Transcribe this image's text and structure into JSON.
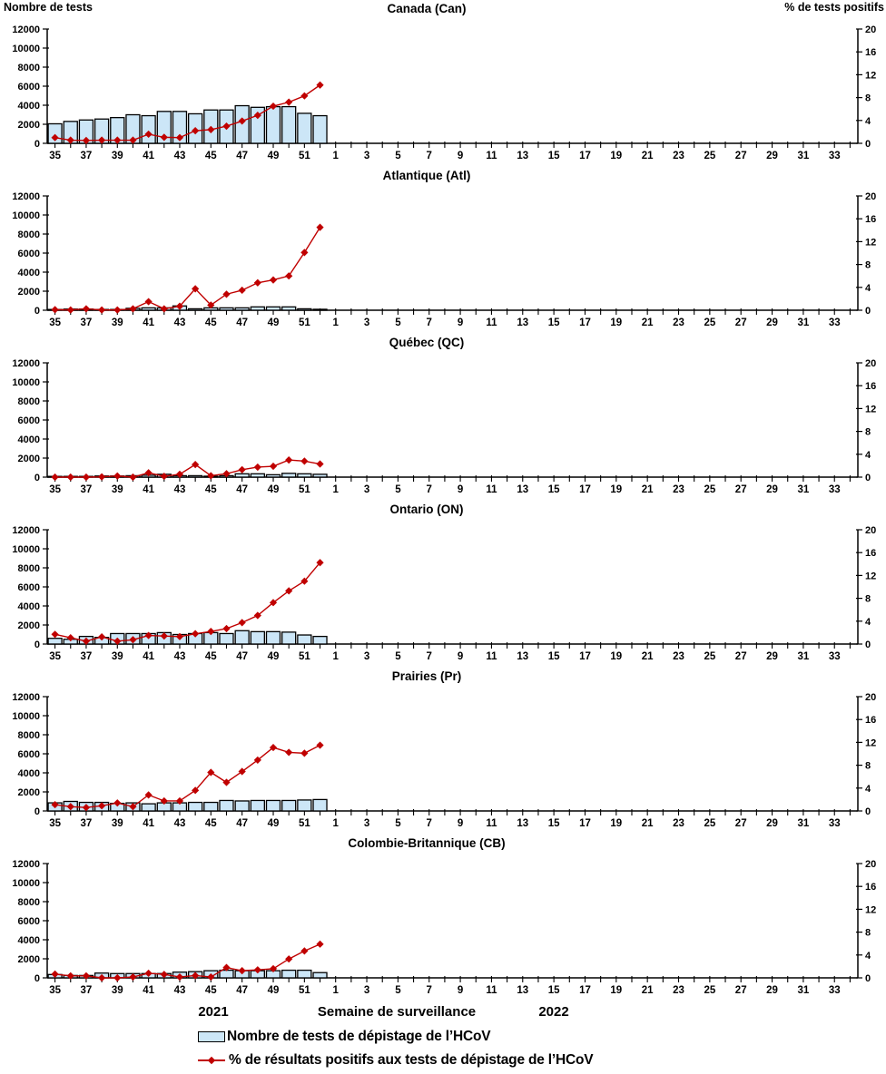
{
  "page": {
    "left_axis_title": "Nombre de tests",
    "right_axis_title": "% de tests positifs",
    "x_axis": {
      "year_left": "2021",
      "label": "Semaine de surveillance",
      "year_right": "2022"
    },
    "legend": [
      {
        "swatch": "bar",
        "label": "Nombre de tests de dépistage de l’HCoV"
      },
      {
        "swatch": "line",
        "label": "% de résultats positifs aux tests de dépistage de l’HCoV"
      }
    ],
    "colors": {
      "bar_fill": "#cce6f7",
      "bar_stroke": "#000000",
      "line": "#c00000"
    }
  },
  "chart_data": [
    {
      "type": "bar+line",
      "title": "Canada (Can)",
      "xlabel": "Semaine de surveillance",
      "ylabel_left": "Nombre de tests",
      "ylabel_right": "% de tests positifs",
      "ylim_left": [
        0,
        12000
      ],
      "ylim_right": [
        0,
        20
      ],
      "categories": [
        35,
        36,
        37,
        38,
        39,
        40,
        41,
        42,
        43,
        44,
        45,
        46,
        47,
        48,
        49,
        50,
        51,
        52,
        1,
        2,
        3,
        4,
        5,
        6,
        7,
        8,
        9,
        10,
        11,
        12,
        13,
        14,
        15,
        16,
        17,
        18,
        19,
        20,
        21,
        22,
        23,
        24,
        25,
        26,
        27,
        28,
        29,
        30,
        31,
        32,
        33,
        34
      ],
      "series": [
        {
          "name": "Nombre de tests de dépistage de l’HCoV",
          "axis": "left",
          "values": [
            2050,
            2300,
            2450,
            2550,
            2700,
            3000,
            2900,
            3350,
            3350,
            3100,
            3500,
            3500,
            3950,
            3780,
            3850,
            3850,
            3150,
            2900
          ]
        },
        {
          "name": "% de résultats positifs aux tests de dépistage de l’HCoV",
          "axis": "right",
          "values": [
            1.0,
            0.55,
            0.5,
            0.55,
            0.55,
            0.55,
            1.6,
            1.05,
            1.0,
            2.2,
            2.4,
            3.0,
            3.9,
            4.9,
            6.5,
            7.2,
            8.3,
            10.2
          ]
        }
      ]
    },
    {
      "type": "bar+line",
      "title": "Atlantique (Atl)",
      "ylim_left": [
        0,
        12000
      ],
      "ylim_right": [
        0,
        20
      ],
      "categories": [
        35,
        36,
        37,
        38,
        39,
        40,
        41,
        42,
        43,
        44,
        45,
        46,
        47,
        48,
        49,
        50,
        51,
        52,
        1,
        2,
        3,
        4,
        5,
        6,
        7,
        8,
        9,
        10,
        11,
        12,
        13,
        14,
        15,
        16,
        17,
        18,
        19,
        20,
        21,
        22,
        23,
        24,
        25,
        26,
        27,
        28,
        29,
        30,
        31,
        32,
        33,
        34
      ],
      "series": [
        {
          "name": "Nombre de tests de dépistage de l’HCoV",
          "axis": "left",
          "values": [
            80,
            120,
            120,
            80,
            80,
            200,
            250,
            250,
            450,
            150,
            250,
            250,
            250,
            350,
            350,
            350,
            150,
            100
          ]
        },
        {
          "name": "% de résultats positifs aux tests de dépistage de l’HCoV",
          "axis": "right",
          "values": [
            0.1,
            0.05,
            0.25,
            0.05,
            0.05,
            0.25,
            1.5,
            0.25,
            0.7,
            3.75,
            0.9,
            2.8,
            3.5,
            4.8,
            5.3,
            6.0,
            10.1,
            14.5
          ]
        }
      ]
    },
    {
      "type": "bar+line",
      "title": "Québec (QC)",
      "ylim_left": [
        0,
        12000
      ],
      "ylim_right": [
        0,
        20
      ],
      "categories": [
        35,
        36,
        37,
        38,
        39,
        40,
        41,
        42,
        43,
        44,
        45,
        46,
        47,
        48,
        49,
        50,
        51,
        52,
        1,
        2,
        3,
        4,
        5,
        6,
        7,
        8,
        9,
        10,
        11,
        12,
        13,
        14,
        15,
        16,
        17,
        18,
        19,
        20,
        21,
        22,
        23,
        24,
        25,
        26,
        27,
        28,
        29,
        30,
        31,
        32,
        33,
        34
      ],
      "series": [
        {
          "name": "Nombre de tests de dépistage de l’HCoV",
          "axis": "left",
          "values": [
            80,
            80,
            80,
            120,
            120,
            150,
            200,
            300,
            150,
            150,
            100,
            150,
            350,
            350,
            250,
            400,
            350,
            300
          ]
        },
        {
          "name": "% de résultats positifs aux tests de dépistage de l’HCoV",
          "axis": "right",
          "values": [
            0.0,
            0.0,
            0.0,
            0.05,
            0.2,
            0.0,
            0.75,
            0.15,
            0.5,
            2.2,
            0.25,
            0.6,
            1.3,
            1.75,
            1.9,
            3.0,
            2.8,
            2.3
          ]
        }
      ]
    },
    {
      "type": "bar+line",
      "title": "Ontario (ON)",
      "ylim_left": [
        0,
        12000
      ],
      "ylim_right": [
        0,
        20
      ],
      "categories": [
        35,
        36,
        37,
        38,
        39,
        40,
        41,
        42,
        43,
        44,
        45,
        46,
        47,
        48,
        49,
        50,
        51,
        52,
        1,
        2,
        3,
        4,
        5,
        6,
        7,
        8,
        9,
        10,
        11,
        12,
        13,
        14,
        15,
        16,
        17,
        18,
        19,
        20,
        21,
        22,
        23,
        24,
        25,
        26,
        27,
        28,
        29,
        30,
        31,
        32,
        33,
        34
      ],
      "series": [
        {
          "name": "Nombre de tests de dépistage de l’HCoV",
          "axis": "left",
          "values": [
            600,
            500,
            800,
            700,
            1100,
            1100,
            1100,
            1200,
            1000,
            1100,
            1200,
            1100,
            1400,
            1300,
            1300,
            1250,
            950,
            800
          ]
        },
        {
          "name": "% de résultats positifs aux tests de dépistage de l’HCoV",
          "axis": "right",
          "values": [
            1.7,
            1.1,
            0.5,
            1.25,
            0.5,
            0.75,
            1.5,
            1.4,
            1.3,
            1.8,
            2.2,
            2.7,
            3.75,
            5.0,
            7.25,
            9.3,
            11.0,
            14.25
          ]
        }
      ]
    },
    {
      "type": "bar+line",
      "title": "Prairies (Pr)",
      "ylim_left": [
        0,
        12000
      ],
      "ylim_right": [
        0,
        20
      ],
      "categories": [
        35,
        36,
        37,
        38,
        39,
        40,
        41,
        42,
        43,
        44,
        45,
        46,
        47,
        48,
        49,
        50,
        51,
        52,
        1,
        2,
        3,
        4,
        5,
        6,
        7,
        8,
        9,
        10,
        11,
        12,
        13,
        14,
        15,
        16,
        17,
        18,
        19,
        20,
        21,
        22,
        23,
        24,
        25,
        26,
        27,
        28,
        29,
        30,
        31,
        32,
        33,
        34
      ],
      "series": [
        {
          "name": "Nombre de tests de dépistage de l’HCoV",
          "axis": "left",
          "values": [
            850,
            1000,
            900,
            900,
            800,
            850,
            750,
            850,
            850,
            900,
            900,
            1100,
            1050,
            1100,
            1100,
            1100,
            1150,
            1200
          ]
        },
        {
          "name": "% de résultats positifs aux tests de dépistage de l’HCoV",
          "axis": "right",
          "values": [
            1.1,
            0.75,
            0.6,
            0.9,
            1.4,
            0.75,
            2.8,
            1.75,
            1.75,
            3.6,
            6.75,
            5.0,
            6.9,
            8.9,
            11.1,
            10.25,
            10.1,
            11.5
          ]
        }
      ]
    },
    {
      "type": "bar+line",
      "title": "Colombie-Britannique (CB)",
      "ylim_left": [
        0,
        12000
      ],
      "ylim_right": [
        0,
        20
      ],
      "categories": [
        35,
        36,
        37,
        38,
        39,
        40,
        41,
        42,
        43,
        44,
        45,
        46,
        47,
        48,
        49,
        50,
        51,
        52,
        1,
        2,
        3,
        4,
        5,
        6,
        7,
        8,
        9,
        10,
        11,
        12,
        13,
        14,
        15,
        16,
        17,
        18,
        19,
        20,
        21,
        22,
        23,
        24,
        25,
        26,
        27,
        28,
        29,
        30,
        31,
        32,
        33,
        34
      ],
      "series": [
        {
          "name": "Nombre de tests de dépistage de l’HCoV",
          "axis": "left",
          "values": [
            350,
            250,
            250,
            500,
            450,
            450,
            450,
            450,
            600,
            650,
            750,
            800,
            750,
            750,
            750,
            800,
            800,
            550
          ]
        },
        {
          "name": "% de résultats positifs aux tests de dépistage de l’HCoV",
          "axis": "right",
          "values": [
            0.65,
            0.35,
            0.35,
            0.0,
            0.0,
            0.15,
            0.8,
            0.6,
            0.15,
            0.4,
            0.15,
            1.8,
            1.25,
            1.4,
            1.6,
            3.3,
            4.7,
            5.9
          ]
        }
      ]
    }
  ]
}
